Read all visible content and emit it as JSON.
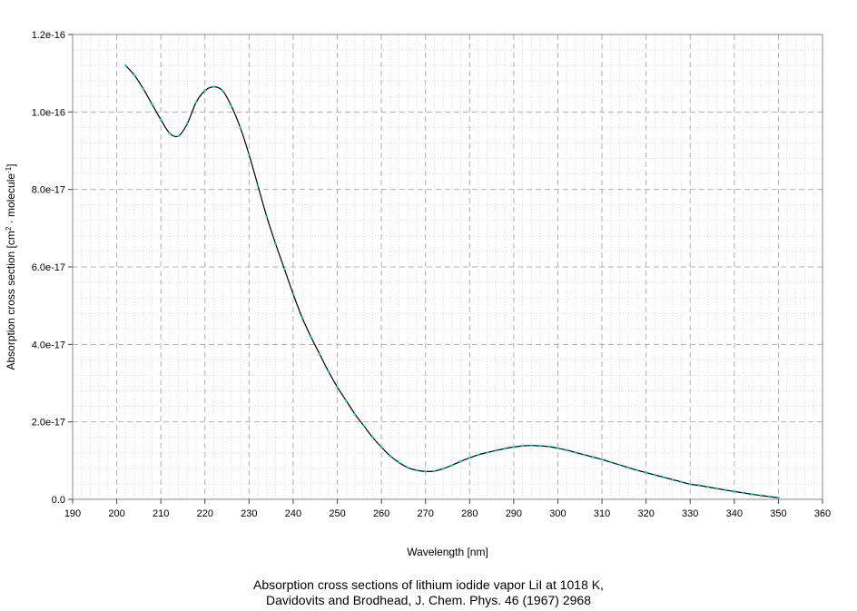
{
  "chart_data": {
    "type": "line",
    "xlabel": "Wavelength [nm]",
    "ylabel_parts": [
      "Absorption cross section [cm",
      "2",
      " · molecule",
      "-1",
      "]"
    ],
    "xlim": [
      190,
      360
    ],
    "ylim": [
      0,
      1.2e-16
    ],
    "x_ticks": [
      "190",
      "200",
      "210",
      "220",
      "230",
      "240",
      "250",
      "260",
      "270",
      "280",
      "290",
      "300",
      "310",
      "320",
      "330",
      "340",
      "350",
      "360"
    ],
    "y_ticks": [
      "0.0",
      "2.0e-17",
      "4.0e-17",
      "6.0e-17",
      "8.0e-17",
      "1.0e-16",
      "1.2e-16"
    ],
    "grid": true,
    "series": [
      {
        "x": [
          202,
          204,
          206,
          208,
          210,
          212,
          214,
          216,
          218,
          220,
          222,
          224,
          226,
          228,
          230,
          232,
          234,
          236,
          238,
          240,
          242,
          244,
          246,
          248,
          250,
          252,
          254,
          256,
          258,
          260,
          262,
          264,
          266,
          268,
          270,
          272,
          274,
          276,
          278,
          280,
          282,
          284,
          286,
          288,
          290,
          292,
          294,
          296,
          298,
          300,
          302,
          304,
          306,
          308,
          310,
          312,
          314,
          316,
          318,
          320,
          322,
          324,
          326,
          328,
          330,
          332,
          334,
          336,
          338,
          340,
          342,
          344,
          346,
          348,
          350
        ],
        "y": [
          1.12e-16,
          1.095e-16,
          1.06e-16,
          1.02e-16,
          9.8e-17,
          9.45e-17,
          9.38e-17,
          9.7e-17,
          1.025e-16,
          1.055e-16,
          1.065e-16,
          1.055e-16,
          1.015e-16,
          9.6e-17,
          8.9e-17,
          8.1e-17,
          7.3e-17,
          6.6e-17,
          5.95e-17,
          5.3e-17,
          4.7e-17,
          4.2e-17,
          3.75e-17,
          3.3e-17,
          2.9e-17,
          2.55e-17,
          2.2e-17,
          1.9e-17,
          1.6e-17,
          1.35e-17,
          1.12e-17,
          9.5e-18,
          8.2e-18,
          7.5e-18,
          7.2e-18,
          7.3e-18,
          7.9e-18,
          8.8e-18,
          9.8e-18,
          1.07e-17,
          1.15e-17,
          1.21e-17,
          1.26e-17,
          1.31e-17,
          1.35e-17,
          1.38e-17,
          1.39e-17,
          1.38e-17,
          1.36e-17,
          1.32e-17,
          1.27e-17,
          1.21e-17,
          1.15e-17,
          1.09e-17,
          1.03e-17,
          9.6e-18,
          8.9e-18,
          8.2e-18,
          7.5e-18,
          6.9e-18,
          6.3e-18,
          5.7e-18,
          5.1e-18,
          4.5e-18,
          3.9e-18,
          3.6e-18,
          3.2e-18,
          2.8e-18,
          2.4e-18,
          2e-18,
          1.7e-18,
          1.3e-18,
          1e-18,
          7e-19,
          4e-19
        ]
      }
    ],
    "line_color": "#000000",
    "marker_color": "#00d0d0",
    "caption_line1": "Absorption cross sections of lithium iodide vapor LiI at 1018 K,",
    "caption_line2": "Davidovits and Brodhead, J. Chem. Phys. 46 (1967) 2968"
  }
}
